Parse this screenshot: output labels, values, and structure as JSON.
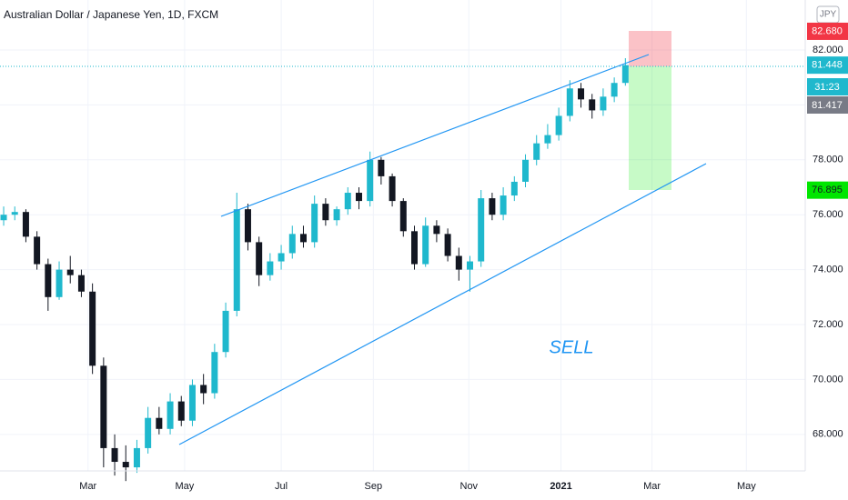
{
  "chart_data": {
    "type": "candlestick",
    "title": "Australian Dollar / Japanese Yen, 1D, FXCM",
    "currency": "JPY",
    "annotation": "SELL",
    "up_color": "#1fb8cd",
    "down_color": "#131722",
    "open": [
      75.8,
      76.0,
      76.1,
      75.2,
      74.2,
      73.0,
      74.0,
      73.8,
      73.2,
      70.5,
      67.5,
      67.0,
      66.8,
      67.5,
      68.6,
      68.2,
      69.2,
      68.5,
      69.8,
      69.5,
      71.0,
      72.5,
      76.2,
      75.0,
      73.8,
      74.3,
      74.6,
      75.3,
      75.0,
      76.4,
      75.8,
      76.2,
      76.8,
      76.5,
      78.0,
      77.4,
      76.5,
      75.4,
      74.2,
      75.6,
      75.3,
      74.5,
      74.0,
      74.3,
      76.6,
      76.0,
      76.7,
      77.2,
      78.0,
      78.6,
      78.9,
      79.6,
      80.6,
      80.2,
      79.8,
      80.3,
      80.8
    ],
    "high": [
      76.3,
      76.3,
      76.2,
      75.4,
      74.4,
      74.3,
      74.5,
      74.0,
      73.5,
      70.8,
      68.0,
      67.6,
      67.8,
      69.0,
      69.0,
      69.5,
      69.4,
      70.0,
      70.2,
      71.3,
      72.8,
      76.8,
      76.4,
      75.2,
      74.6,
      74.9,
      75.6,
      75.6,
      76.7,
      76.6,
      76.3,
      77.0,
      77.0,
      78.3,
      78.1,
      77.5,
      76.6,
      75.6,
      75.9,
      75.8,
      75.5,
      74.8,
      74.5,
      76.9,
      76.8,
      77.0,
      77.4,
      78.2,
      78.9,
      79.3,
      79.9,
      80.9,
      80.8,
      80.4,
      80.6,
      81.0,
      81.7
    ],
    "low": [
      75.6,
      75.8,
      75.0,
      74.0,
      72.5,
      72.9,
      73.5,
      73.0,
      70.2,
      66.8,
      66.5,
      66.3,
      66.6,
      67.3,
      68.0,
      68.0,
      68.3,
      68.3,
      69.1,
      69.3,
      70.8,
      72.3,
      74.7,
      73.4,
      73.6,
      74.0,
      74.4,
      74.8,
      74.8,
      75.6,
      75.6,
      76.0,
      76.2,
      76.3,
      77.1,
      76.3,
      75.2,
      74.0,
      74.1,
      75.0,
      74.3,
      73.6,
      73.2,
      74.1,
      75.8,
      75.8,
      76.5,
      77.0,
      77.8,
      78.4,
      78.7,
      79.4,
      79.9,
      79.5,
      79.6,
      80.1,
      80.7
    ],
    "close": [
      76.0,
      76.1,
      75.2,
      74.2,
      73.0,
      74.0,
      73.8,
      73.2,
      70.5,
      67.5,
      67.0,
      66.8,
      67.5,
      68.6,
      68.2,
      69.2,
      68.5,
      69.8,
      69.5,
      71.0,
      72.5,
      76.2,
      75.0,
      73.8,
      74.3,
      74.6,
      75.3,
      75.0,
      76.4,
      75.8,
      76.2,
      76.8,
      76.5,
      78.0,
      77.4,
      76.5,
      75.4,
      74.2,
      75.6,
      75.3,
      74.5,
      74.0,
      74.3,
      76.6,
      76.0,
      76.7,
      77.2,
      78.0,
      78.6,
      78.9,
      79.6,
      80.6,
      80.2,
      79.8,
      80.3,
      80.8,
      81.45
    ],
    "ylim": [
      66.67,
      83.82
    ],
    "yticks": [
      {
        "value": 68,
        "label": "68.000"
      },
      {
        "value": 70,
        "label": "70.000"
      },
      {
        "value": 72,
        "label": "72.000"
      },
      {
        "value": 74,
        "label": "74.000"
      },
      {
        "value": 76,
        "label": "76.000"
      },
      {
        "value": 78,
        "label": "78.000"
      },
      {
        "value": 82,
        "label": "82.000"
      }
    ],
    "grid_values": [
      80
    ],
    "xlim": [
      -0.33,
      72.2
    ],
    "xticks": [
      {
        "value": 7.6,
        "label": "Mar"
      },
      {
        "value": 16.3,
        "label": "May"
      },
      {
        "value": 25,
        "label": "Jul"
      },
      {
        "value": 33.3,
        "label": "Sep"
      },
      {
        "value": 41.9,
        "label": "Nov"
      },
      {
        "value": 50.2,
        "label": "2021"
      },
      {
        "value": 58.4,
        "label": "Mar"
      },
      {
        "value": 66.9,
        "label": "May"
      }
    ],
    "price_badges": [
      {
        "value": 82.68,
        "label": "82.680",
        "color": "#f23645"
      },
      {
        "value": 81.448,
        "label": "81.448",
        "color": "#1fb8cd"
      },
      {
        "value": 76.895,
        "label": "76.895",
        "color": "#00e600"
      }
    ],
    "countdown": "31:23",
    "bid_label": "81.417"
  }
}
